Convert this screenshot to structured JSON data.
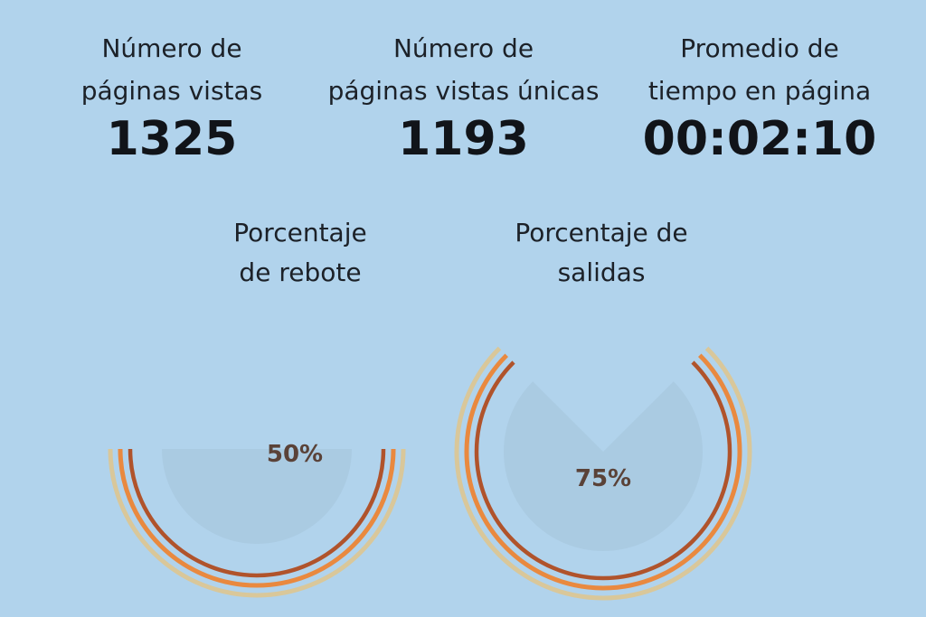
{
  "metrics": [
    {
      "label_line1": "Número de",
      "label_line2": "páginas vistas",
      "value": "1325"
    },
    {
      "label_line1": "Número de",
      "label_line2": "páginas vistas únicas",
      "value": "1193"
    },
    {
      "label_line1": "Promedio de",
      "label_line2": "tiempo en página",
      "value": "00:02:10"
    }
  ],
  "gauges": [
    {
      "label_line1": "Porcentaje",
      "label_line2": "de rebote",
      "percent": 50,
      "percent_label": "50%"
    },
    {
      "label_line1": "Porcentaje de",
      "label_line2": "salidas",
      "percent": 75,
      "percent_label": "75%"
    }
  ],
  "colors": {
    "background": "#b1d3ec",
    "ring_outer": "#d9c79a",
    "ring_middle": "#e9893f",
    "ring_inner": "#b0532b",
    "fill": "#a9c9e0"
  }
}
